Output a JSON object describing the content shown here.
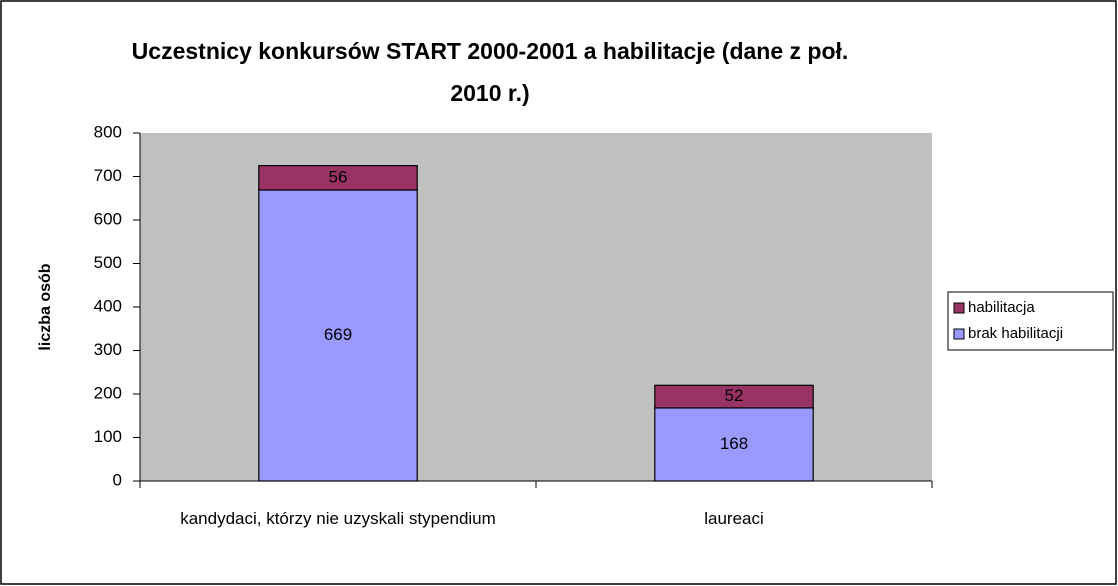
{
  "chart_data": {
    "type": "stacked_bar",
    "title": "Uczestnicy konkursów START 2000-2001 a habilitacje (dane z poł. 2010 r.)",
    "ylabel": "liczba osób",
    "categories": [
      "kandydaci, którzy nie uzyskali stypendium",
      "laureaci"
    ],
    "series": [
      {
        "name": "brak habilitacji",
        "color": "#9999ff",
        "values": [
          669,
          168
        ]
      },
      {
        "name": "habilitacja",
        "color": "#993366",
        "values": [
          56,
          52
        ]
      }
    ],
    "ylim": [
      0,
      800
    ],
    "yticks": [
      0,
      100,
      200,
      300,
      400,
      500,
      600,
      700,
      800
    ],
    "legend": "right"
  }
}
